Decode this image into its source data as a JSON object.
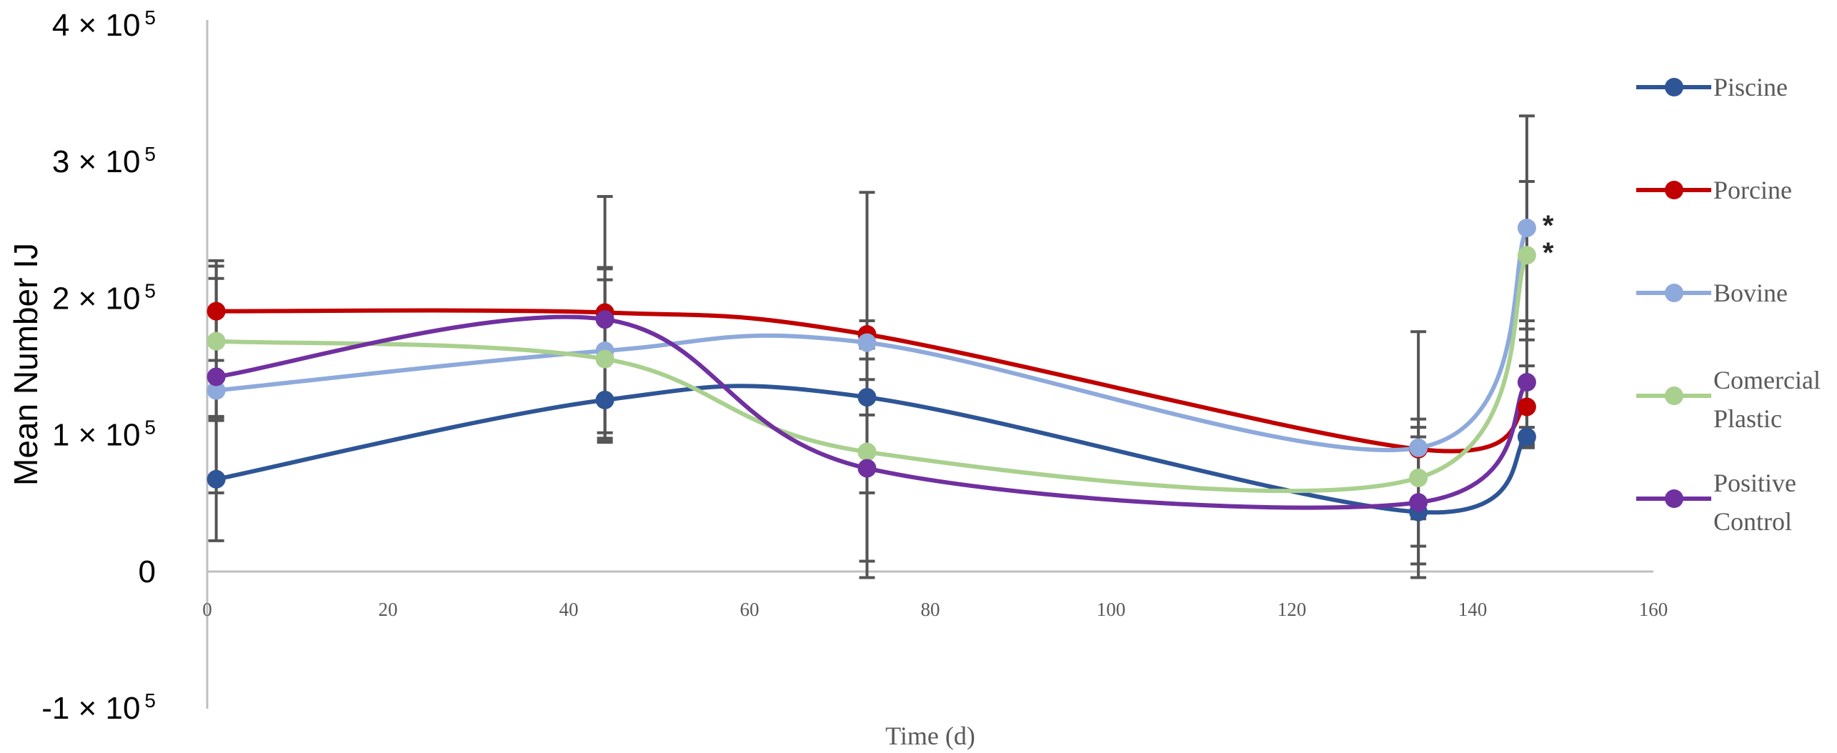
{
  "chart_data": {
    "type": "line",
    "title": "",
    "xlabel": "Time (d)",
    "ylabel": "Mean Number IJ",
    "xlim": [
      0,
      160
    ],
    "ylim": [
      -100000,
      400000
    ],
    "x_ticks": [
      "0",
      "20",
      "40",
      "60",
      "80",
      "100",
      "120",
      "140",
      "160"
    ],
    "y_ticks": [
      {
        "value": 400000,
        "mantissa": "4 × 10",
        "exp": "5"
      },
      {
        "value": 300000,
        "mantissa": "3 × 10",
        "exp": "5"
      },
      {
        "value": 200000,
        "mantissa": "2 × 10",
        "exp": "5"
      },
      {
        "value": 100000,
        "mantissa": "1 × 10",
        "exp": "5"
      },
      {
        "value": 0,
        "mantissa": "0",
        "exp": ""
      },
      {
        "value": -100000,
        "mantissa": "-1 × 10",
        "exp": "5"
      }
    ],
    "x": [
      1,
      44,
      73,
      134,
      146
    ],
    "series": [
      {
        "name": "Piscine",
        "color": "#2E5596",
        "values": [
          68000,
          126000,
          128000,
          44000,
          99000
        ],
        "error": [
          45000,
          30000,
          13000,
          25000,
          7000
        ]
      },
      {
        "name": "Porcine",
        "color": "#C00000",
        "values": [
          191000,
          190000,
          174000,
          90000,
          121000
        ],
        "error": [
          24000,
          33000,
          10000,
          22000,
          30000
        ]
      },
      {
        "name": "Bovine",
        "color": "#8EA9DB",
        "values": [
          133000,
          162000,
          168000,
          91000,
          252000
        ],
        "error": [
          22000,
          60000,
          110000,
          85000,
          82000
        ]
      },
      {
        "name": "Comercial Plastic",
        "color": "#A9D08E",
        "values": [
          169000,
          156000,
          88000,
          69000,
          232000
        ],
        "error": [
          55000,
          58000,
          80000,
          30000,
          54000
        ]
      },
      {
        "name": "Positive Control",
        "color": "#7030A0",
        "values": [
          143000,
          185000,
          76000,
          51000,
          139000
        ],
        "error": [
          85000,
          90000,
          80000,
          55000,
          45000
        ]
      }
    ],
    "legend_position": "right",
    "legend_lines": [
      [
        "Piscine"
      ],
      [
        "Porcine"
      ],
      [
        "Bovine"
      ],
      [
        "Comercial",
        "Plastic"
      ],
      [
        "Positive",
        "Control"
      ]
    ],
    "annotations": [
      {
        "text": "*",
        "series": "Bovine",
        "x": 146
      },
      {
        "text": "*",
        "series": "Comercial Plastic",
        "x": 146
      }
    ]
  }
}
